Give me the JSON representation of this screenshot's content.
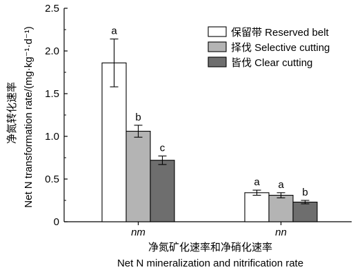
{
  "chart_data": {
    "type": "bar",
    "categories": [
      "nm",
      "nn"
    ],
    "series": [
      {
        "name": "保留带 Reserved belt",
        "values": [
          1.86,
          0.34
        ],
        "errors": [
          0.28,
          0.03
        ],
        "letters": [
          "a",
          "a"
        ],
        "color": "#ffffff"
      },
      {
        "name": "择伐 Selective cutting",
        "values": [
          1.06,
          0.31
        ],
        "errors": [
          0.07,
          0.03
        ],
        "letters": [
          "b",
          "a"
        ],
        "color": "#b4b4b4"
      },
      {
        "name": "皆伐 Clear cutting",
        "values": [
          0.72,
          0.23
        ],
        "errors": [
          0.05,
          0.02
        ],
        "letters": [
          "c",
          "b"
        ],
        "color": "#6e6e6e"
      }
    ],
    "ylim": [
      0,
      2.5
    ],
    "yticks": [
      "0",
      "0.5",
      "1.0",
      "1.5",
      "2.0",
      "2.5"
    ],
    "ylabel_cn": "净氮转化速率",
    "ylabel": "Net N transformation rate/(mg·kg⁻¹·d⁻¹)",
    "xlabel_cn": "净氮矿化速率和净硝化速率",
    "xlabel": "Net N mineralization and nitrification rate",
    "legend_position": "top-right",
    "grid": false
  }
}
